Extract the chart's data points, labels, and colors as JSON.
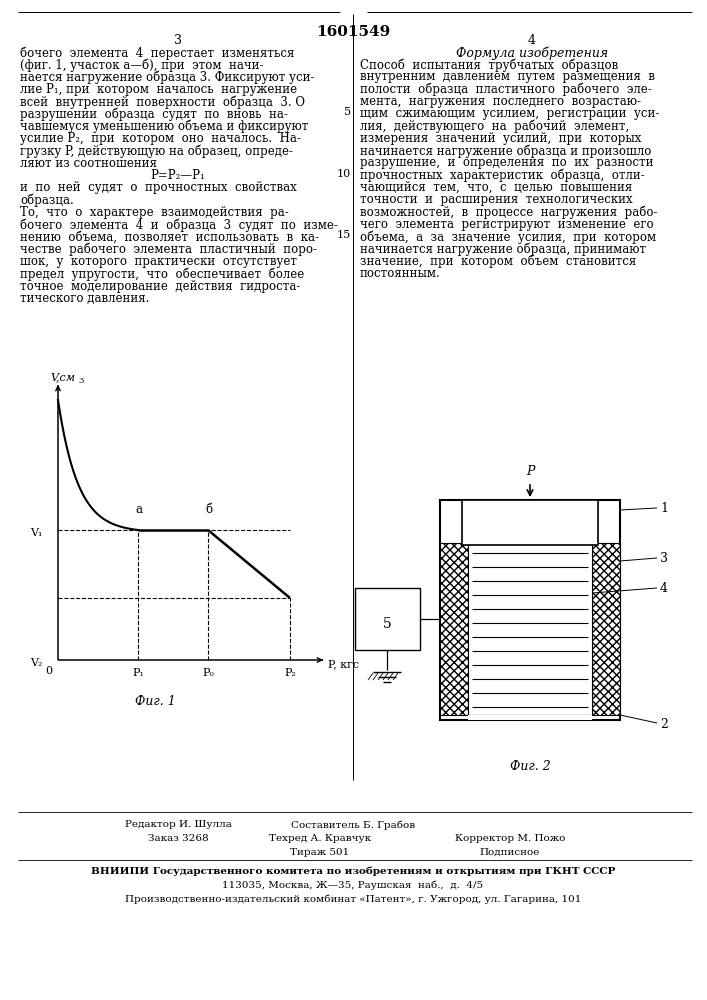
{
  "patent_number": "1601549",
  "page_left": "3",
  "page_right": "4",
  "formula_title": "Формула изобретения",
  "left_text": [
    "бочего  элемента  4  перестает  изменяться",
    "(фиг. 1, участок а—б), при  этом  начи-",
    "нается нагружение образца 3. Фиксируют уси-",
    "лие P₁, при  котором  началось  нагружение",
    "всей  внутренней  поверхности  образца  3. О",
    "разрушении  образца  судят  по  вновь  на-",
    "чавшемуся уменьшению объема и фиксируют",
    "усилие P₂,  при  котором  оно  началось.  На-",
    "грузку P, действующую на образец, опреде-",
    "ляют из соотношения",
    "P=P₂—P₁",
    "и  по  ней  судят  о  прочностных  свойствах",
    "образца.",
    "То,  что  о  характере  взаимодействия  ра-",
    "бочего  элемента  4  и  образца  3  судят  по  изме-",
    "нению  объема,  позволяет  использовать  в  ка-",
    "честве  рабочего  элемента  пластичный  поро-",
    "шок,  у  которого  практически  отсутствует",
    "предел  упругости,  что  обеспечивает  более",
    "точное  моделирование  действия  гидроста-",
    "тического давления."
  ],
  "right_text": [
    "Способ  испытания  трубчатых  образцов",
    "внутренним  давлением  путем  размещения  в",
    "полости  образца  пластичного  рабочего  эле-",
    "мента,  нагружения  последнего  возрастаю-",
    "щим  сжимающим  усилием,  регистрации  уси-",
    "лия,  действующего  на  рабочий  элемент,",
    "измерения  значений  усилий,  при  которых",
    "начинается нагружение образца и произошло",
    "разрушение,  и  определения  по  их  разности",
    "прочностных  характеристик  образца,  отли-",
    "чающийся  тем,  что,  с  целью  повышения",
    "точности  и  расширения  технологических",
    "возможностей,  в  процессе  нагружения  рабо-",
    "чего  элемента  регистрируют  изменение  его",
    "объема,  а  за  значение  усилия,  при  котором",
    "начинается нагружение образца, принимают",
    "значение,  при  котором  объем  становится",
    "постоянным."
  ],
  "fig1_caption": "Фиг. 1",
  "fig2_caption": "Фиг. 2",
  "footer_left1": "Редактор И. Шулла",
  "footer_left2": "Заказ 3268",
  "footer_center1": "Составитель Б. Грабов",
  "footer_center2": "Техред А. Кравчук",
  "footer_center3": "Тираж 501",
  "footer_right1": "Корректор М. Пожо",
  "footer_right2": "Подписное",
  "footer_org": "ВНИИПИ Государственного комитета по изобретениям и открытиям при ГКНТ СССР",
  "footer_addr1": "113035, Москва, Ж—35, Раушская  наб.,  д.  4/5",
  "footer_addr2": "Производственно-издательский комбинат «Патент», г. Ужгород, ул. Гагарина, 101",
  "bg_color": "#ffffff",
  "text_color": "#000000"
}
